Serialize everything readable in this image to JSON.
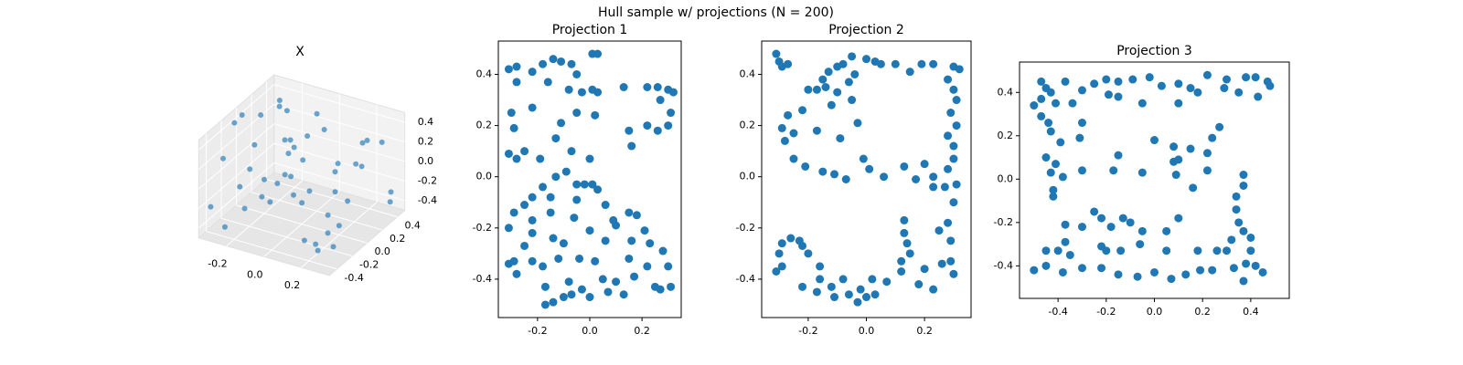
{
  "title": "Hull sample w/ projections (N = 200)",
  "chart_data": [
    {
      "type": "scatter3d",
      "title": "X",
      "color": "#1f77b4",
      "x": [
        -0.3,
        -0.25,
        -0.2,
        -0.15,
        -0.1,
        -0.05,
        0,
        0.05,
        0.1,
        0.15,
        0.2,
        0.25,
        0.3,
        -0.32,
        -0.28,
        -0.22,
        -0.12,
        -0.02,
        0.08,
        0.18,
        0.28,
        0.32,
        -0.3,
        -0.18,
        -0.06,
        0.06,
        0.16,
        0.26,
        -0.26,
        -0.14,
        0.02,
        0.12,
        0.22,
        0.31,
        -0.31,
        -0.2,
        -0.08,
        0.04,
        0.14,
        0.24,
        -0.24,
        -0.1,
        0.1,
        0.3,
        -0.29,
        -0.16,
        0,
        0.2
      ],
      "y": [
        0.45,
        -0.4,
        0.2,
        -0.45,
        0.35,
        -0.1,
        0.48,
        -0.3,
        0.1,
        -0.48,
        0.3,
        -0.2,
        0.44,
        0.0,
        -0.35,
        0.4,
        -0.46,
        0.25,
        -0.42,
        0.05,
        -0.25,
        0.38,
        -0.15,
        0.46,
        -0.38,
        0.15,
        -0.05,
        0.42,
        0.32,
        -0.28,
        -0.47,
        0.42,
        -0.33,
        0.1,
        -0.44,
        0.3,
        0.2,
        -0.2,
        0.46,
        -0.41,
        0.05,
        -0.44,
        0.36,
        -0.3,
        0.22,
        0.47,
        -0.15,
        -0.46
      ],
      "z": [
        0.3,
        -0.4,
        0.46,
        0.1,
        -0.45,
        0.4,
        -0.2,
        0.45,
        -0.42,
        0.2,
        0.0,
        -0.46,
        -0.3,
        0.44,
        0.25,
        -0.4,
        -0.1,
        0.45,
        0.33,
        -0.45,
        0.15,
        -0.35,
        0.47,
        -0.25,
        0.0,
        0.4,
        -0.47,
        0.2,
        -0.44,
        0.42,
        0.05,
        -0.1,
        -0.43,
        0.46,
        -0.2,
        0.35,
        -0.46,
        0.44,
        0.1,
        -0.3,
        0.45,
        0.3,
        -0.45,
        0.4,
        -0.35,
        0.0,
        0.46,
        -0.25
      ],
      "xlim": [
        -0.35,
        0.35
      ],
      "ylim": [
        -0.5,
        0.5
      ],
      "zlim": [
        -0.5,
        0.5
      ],
      "xticks": [
        -0.2,
        {
          "value": 0,
          "label": "0.0"
        },
        0.2
      ],
      "yticks": [
        -0.4,
        -0.2,
        {
          "value": 0,
          "label": "0.0"
        },
        0.2,
        0.4
      ],
      "zticks": [
        -0.4,
        -0.2,
        {
          "value": 0,
          "label": "0.0"
        },
        0.2,
        0.4
      ]
    },
    {
      "type": "scatter",
      "title": "Projection 1",
      "color": "#1f77b4",
      "x": [
        -0.31,
        -0.28,
        -0.22,
        -0.18,
        -0.14,
        -0.11,
        -0.07,
        -0.05,
        0.01,
        0.03,
        0.13,
        0.22,
        0.26,
        0.3,
        0.32,
        -0.28,
        -0.16,
        -0.08,
        -0.03,
        0.01,
        0.03,
        -0.3,
        -0.22,
        -0.11,
        -0.05,
        0.02,
        0.27,
        0.31,
        0.3,
        0.26,
        -0.29,
        -0.25,
        -0.19,
        -0.13,
        -0.07,
        0,
        0.15,
        0.22,
        0.16,
        -0.31,
        -0.28,
        -0.13,
        -0.09,
        -0.05,
        -0.02,
        0.01,
        0.03,
        -0.22,
        -0.25,
        -0.18,
        -0.15,
        -0.05,
        0.06,
        0.09,
        0.15,
        -0.29,
        -0.22,
        -0.15,
        -0.06,
        0,
        0.18,
        0.21,
        -0.22,
        -0.31,
        -0.25,
        -0.14,
        -0.1,
        0.06,
        0.1,
        0.16,
        0.23,
        0.28,
        -0.29,
        -0.31,
        -0.22,
        -0.18,
        -0.12,
        -0.04,
        0.02,
        0.15,
        0.22,
        0.3,
        -0.28,
        -0.17,
        -0.08,
        0.05,
        0.1,
        0.17,
        0.25,
        0.31,
        -0.17,
        -0.14,
        -0.1,
        -0.07,
        0,
        0.07,
        0.13,
        0.27,
        -0.03
      ],
      "y": [
        0.42,
        0.43,
        0.41,
        0.44,
        0.46,
        0.45,
        0.44,
        0.4,
        0.48,
        0.48,
        0.35,
        0.35,
        0.35,
        0.34,
        0.33,
        0.37,
        0.37,
        0.34,
        0.33,
        0.34,
        0.33,
        0.25,
        0.27,
        0.21,
        0.25,
        0.24,
        0.3,
        0.25,
        0.2,
        0.18,
        0.19,
        0.1,
        0.07,
        0.15,
        0.1,
        0.07,
        0.18,
        0.2,
        0.12,
        0.09,
        0.07,
        0,
        0.02,
        -0.03,
        -0.03,
        -0.03,
        -0.05,
        -0.08,
        -0.11,
        -0.04,
        -0.08,
        -0.09,
        -0.11,
        -0.17,
        -0.14,
        -0.14,
        -0.17,
        -0.14,
        -0.16,
        -0.21,
        -0.15,
        -0.21,
        -0.22,
        -0.2,
        -0.27,
        -0.24,
        -0.26,
        -0.25,
        -0.19,
        -0.25,
        -0.26,
        -0.29,
        -0.33,
        -0.34,
        -0.33,
        -0.35,
        -0.32,
        -0.32,
        -0.33,
        -0.32,
        -0.35,
        -0.35,
        -0.38,
        -0.43,
        -0.41,
        -0.4,
        -0.41,
        -0.39,
        -0.43,
        -0.43,
        -0.5,
        -0.49,
        -0.47,
        -0.46,
        -0.47,
        -0.45,
        -0.46,
        -0.44,
        -0.44
      ],
      "xlim": [
        -0.35,
        0.35
      ],
      "ylim": [
        -0.55,
        0.53
      ],
      "xticks": [
        -0.2,
        {
          "value": 0,
          "label": "0.0"
        },
        0.2
      ],
      "yticks": [
        -0.4,
        -0.2,
        {
          "value": 0,
          "label": "0.0"
        },
        0.2,
        0.4
      ]
    },
    {
      "type": "scatter",
      "title": "Projection 2",
      "color": "#1f77b4",
      "x": [
        -0.31,
        -0.3,
        -0.29,
        -0.27,
        -0.15,
        -0.13,
        -0.1,
        -0.08,
        -0.05,
        0,
        0.03,
        0.05,
        0.1,
        0.15,
        0.19,
        0.23,
        0.3,
        0.32,
        -0.2,
        -0.17,
        -0.14,
        -0.1,
        -0.06,
        -0.04,
        0.28,
        0.3,
        0.31,
        0.29,
        -0.27,
        -0.22,
        -0.12,
        -0.05,
        0.31,
        0.28,
        0.3,
        -0.29,
        -0.25,
        -0.17,
        -0.09,
        -0.03,
        0.3,
        0.28,
        -0.28,
        -0.25,
        -0.21,
        -0.15,
        -0.11,
        -0.07,
        -0.01,
        0.01,
        0.06,
        0.13,
        0.2,
        0.23,
        0.17,
        0.23,
        0.27,
        0.31,
        0.3,
        0.28,
        0.25,
        0.29,
        0.13,
        0.13,
        0.14,
        0.15,
        -0.3,
        -0.29,
        -0.26,
        -0.23,
        -0.22,
        -0.29,
        -0.31,
        -0.2,
        -0.16,
        -0.16,
        -0.22,
        -0.17,
        -0.12,
        -0.08,
        -0.06,
        -0.02,
        0.02,
        0.07,
        0.12,
        0.12,
        0.2,
        0.26,
        0.29,
        0.3,
        0.23,
        0.18,
        0.03,
        -0.03,
        -0.11,
        0
      ],
      "y": [
        0.48,
        0.45,
        0.43,
        0.44,
        0.38,
        0.41,
        0.43,
        0.44,
        0.47,
        0.46,
        0.45,
        0.44,
        0.44,
        0.41,
        0.44,
        0.44,
        0.43,
        0.42,
        0.34,
        0.34,
        0.35,
        0.33,
        0.37,
        0.4,
        0.38,
        0.34,
        0.3,
        0.25,
        0.24,
        0.26,
        0.28,
        0.3,
        0.2,
        0.16,
        0.12,
        0.19,
        0.17,
        0.18,
        0.15,
        0.21,
        0.07,
        0.03,
        0.14,
        0.07,
        0.04,
        0.02,
        0.01,
        -0.01,
        0.07,
        0.03,
        0,
        0.04,
        0.05,
        0,
        -0.01,
        -0.04,
        -0.04,
        -0.03,
        -0.1,
        -0.18,
        -0.21,
        -0.25,
        -0.17,
        -0.22,
        -0.26,
        -0.3,
        -0.3,
        -0.26,
        -0.24,
        -0.25,
        -0.27,
        -0.35,
        -0.37,
        -0.3,
        -0.35,
        -0.4,
        -0.43,
        -0.45,
        -0.43,
        -0.4,
        -0.46,
        -0.44,
        -0.4,
        -0.41,
        -0.37,
        -0.33,
        -0.36,
        -0.34,
        -0.33,
        -0.38,
        -0.44,
        -0.42,
        -0.46,
        -0.49,
        -0.47,
        -0.47
      ],
      "xlim": [
        -0.36,
        0.36
      ],
      "ylim": [
        -0.55,
        0.53
      ],
      "xticks": [
        -0.2,
        {
          "value": 0,
          "label": "0.0"
        },
        0.2
      ],
      "yticks": [
        -0.4,
        -0.2,
        {
          "value": 0,
          "label": "0.0"
        },
        0.2,
        0.4
      ]
    },
    {
      "type": "scatter",
      "title": "Projection 3",
      "color": "#1f77b4",
      "x": [
        -0.47,
        -0.45,
        -0.43,
        -0.37,
        -0.25,
        -0.2,
        -0.15,
        -0.09,
        -0.02,
        0.03,
        0.1,
        0.15,
        0.22,
        0.3,
        0.38,
        0.42,
        0.47,
        0.48,
        -0.5,
        -0.47,
        -0.41,
        -0.34,
        -0.3,
        -0.19,
        -0.15,
        -0.05,
        0.1,
        0.18,
        0.29,
        0.35,
        0.43,
        -0.47,
        -0.44,
        -0.39,
        -0.43,
        -0.45,
        -0.41,
        -0.43,
        -0.38,
        -0.42,
        -0.42,
        -0.3,
        -0.31,
        -0.3,
        -0.17,
        -0.15,
        -0.05,
        0,
        0.08,
        0.08,
        0.1,
        0.15,
        0.24,
        0.22,
        0.27,
        0.22,
        0.16,
        0.09,
        -0.25,
        -0.22,
        -0.3,
        -0.18,
        -0.1,
        -0.05,
        0.05,
        0.1,
        -0.13,
        0.34,
        0.37,
        0.37,
        0.34,
        0.35,
        0.37,
        0.4,
        0.32,
        -0.37,
        -0.37,
        -0.45,
        -0.4,
        -0.35,
        -0.22,
        -0.2,
        -0.14,
        -0.06,
        0.05,
        0.18,
        0.26,
        0.3,
        0.4,
        -0.5,
        -0.45,
        -0.38,
        -0.3,
        -0.22,
        -0.15,
        -0.07,
        0,
        0.07,
        0.13,
        0.19,
        0.24,
        0.33,
        0.38,
        0.42,
        0.45,
        0.37
      ],
      "y": [
        0.45,
        0.42,
        0.4,
        0.45,
        0.44,
        0.46,
        0.45,
        0.46,
        0.47,
        0.43,
        0.44,
        0.42,
        0.48,
        0.46,
        0.47,
        0.47,
        0.45,
        0.43,
        0.34,
        0.37,
        0.35,
        0.35,
        0.41,
        0.39,
        0.38,
        0.35,
        0.35,
        0.4,
        0.42,
        0.4,
        0.38,
        0.29,
        0.26,
        0.17,
        0.22,
        0.1,
        0.07,
        0.03,
        0.01,
        -0.05,
        -0.08,
        0.26,
        0.19,
        0.04,
        0.04,
        0.11,
        0.03,
        0.18,
        0.15,
        0.08,
        0.09,
        0.14,
        0.19,
        0.12,
        0.24,
        0.04,
        -0.04,
        0.02,
        -0.15,
        -0.18,
        -0.22,
        -0.22,
        -0.2,
        -0.24,
        -0.24,
        -0.18,
        -0.18,
        -0.08,
        -0.03,
        0.02,
        -0.14,
        -0.2,
        -0.24,
        -0.27,
        -0.28,
        -0.21,
        -0.29,
        -0.33,
        -0.33,
        -0.35,
        -0.31,
        -0.33,
        -0.33,
        -0.3,
        -0.33,
        -0.33,
        -0.33,
        -0.33,
        -0.33,
        -0.42,
        -0.4,
        -0.43,
        -0.41,
        -0.41,
        -0.44,
        -0.45,
        -0.43,
        -0.46,
        -0.44,
        -0.42,
        -0.42,
        -0.41,
        -0.39,
        -0.4,
        -0.43,
        -0.47
      ],
      "xlim": [
        -0.56,
        0.56
      ],
      "ylim": [
        -0.55,
        0.54
      ],
      "xticks": [
        -0.4,
        -0.2,
        {
          "value": 0,
          "label": "0.0"
        },
        0.2,
        0.4
      ],
      "yticks": [
        -0.4,
        -0.2,
        {
          "value": 0,
          "label": "0.0"
        },
        0.2,
        0.4
      ]
    }
  ]
}
